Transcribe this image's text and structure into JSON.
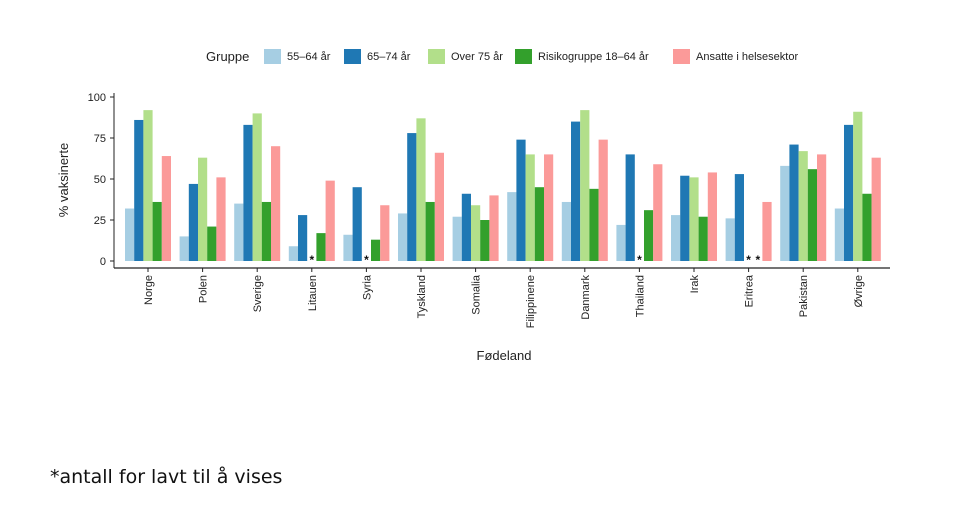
{
  "chart_data": {
    "type": "bar",
    "title": "",
    "xlabel": "Fødeland",
    "ylabel": "% vaksinerte",
    "ylim": [
      0,
      100
    ],
    "yticks": [
      0,
      25,
      50,
      75,
      100
    ],
    "grid": false,
    "legend": {
      "title": "Gruppe",
      "placement": "top"
    },
    "categories": [
      "Norge",
      "Polen",
      "Sverige",
      "Litauen",
      "Syria",
      "Tyskland",
      "Somalia",
      "Filippinene",
      "Danmark",
      "Thailand",
      "Irak",
      "Eritrea",
      "Pakistan",
      "Øvrige"
    ],
    "series": [
      {
        "name": "55–64 år",
        "color": "#a6cee3",
        "values": [
          32,
          15,
          35,
          9,
          16,
          29,
          27,
          42,
          36,
          22,
          28,
          26,
          58,
          32
        ]
      },
      {
        "name": "65–74 år",
        "color": "#1f78b4",
        "values": [
          86,
          47,
          83,
          28,
          45,
          78,
          41,
          74,
          85,
          65,
          52,
          53,
          71,
          83
        ]
      },
      {
        "name": "Over 75 år",
        "color": "#b2df8a",
        "values": [
          92,
          63,
          90,
          null,
          null,
          87,
          34,
          65,
          92,
          null,
          51,
          null,
          67,
          91
        ]
      },
      {
        "name": "Risikogruppe 18–64 år",
        "color": "#33a02c",
        "values": [
          36,
          21,
          36,
          17,
          13,
          36,
          25,
          45,
          44,
          31,
          27,
          null,
          56,
          41
        ]
      },
      {
        "name": "Ansatte i helsesektor",
        "color": "#fb9a99",
        "values": [
          64,
          51,
          70,
          49,
          34,
          66,
          40,
          65,
          74,
          59,
          54,
          36,
          65,
          63
        ]
      }
    ],
    "missing_marker": "*"
  },
  "footnote": "*antall for lavt til å vises"
}
